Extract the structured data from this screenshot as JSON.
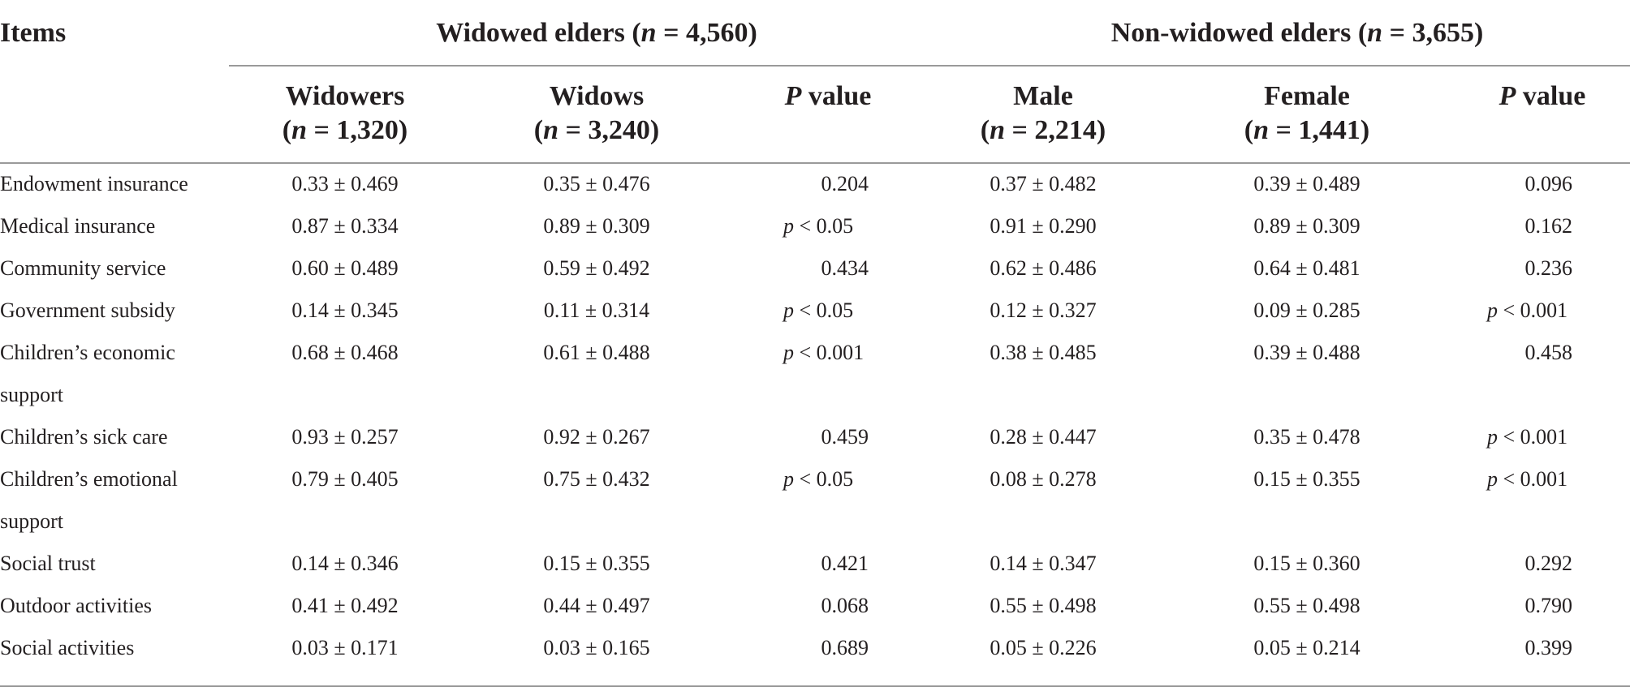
{
  "table": {
    "corner_header": "Items",
    "group_widowed": {
      "label": "Widowed elders (",
      "n_label": "n",
      "n_value": " = 4,560)"
    },
    "group_nonwidowed": {
      "label": "Non-widowed elders (",
      "n_label": "n",
      "n_value": " = 3,655)"
    },
    "columns": [
      {
        "line1": "Widowers",
        "line2_pre": "(",
        "n": "n",
        "line2_post": " = 1,320)"
      },
      {
        "line1": "Widows",
        "line2_pre": "(",
        "n": "n",
        "line2_post": " = 3,240)"
      },
      {
        "p_italic": "P",
        "p_rest": " value"
      },
      {
        "line1": "Male",
        "line2_pre": "(",
        "n": "n",
        "line2_post": " = 2,214)"
      },
      {
        "line1": "Female",
        "line2_pre": "(",
        "n": "n",
        "line2_post": " = 1,441)"
      },
      {
        "p_italic": "P",
        "p_rest": " value"
      }
    ],
    "rows": [
      {
        "item": [
          "Endowment insurance"
        ],
        "widowers": "0.33 ± 0.469",
        "widows": "0.35 ± 0.476",
        "p1": "0.204",
        "p1_italic": false,
        "male": "0.37 ± 0.482",
        "female": "0.39 ± 0.489",
        "p2": "0.096",
        "p2_italic": false
      },
      {
        "item": [
          "Medical insurance"
        ],
        "widowers": "0.87 ± 0.334",
        "widows": "0.89 ± 0.309",
        "p1": "< 0.05",
        "p1_italic": true,
        "male": "0.91 ± 0.290",
        "female": "0.89 ± 0.309",
        "p2": "0.162",
        "p2_italic": false
      },
      {
        "item": [
          "Community service"
        ],
        "widowers": "0.60 ± 0.489",
        "widows": "0.59 ± 0.492",
        "p1": "0.434",
        "p1_italic": false,
        "male": "0.62 ± 0.486",
        "female": "0.64 ± 0.481",
        "p2": "0.236",
        "p2_italic": false
      },
      {
        "item": [
          "Government subsidy"
        ],
        "widowers": "0.14 ± 0.345",
        "widows": "0.11 ± 0.314",
        "p1": "< 0.05",
        "p1_italic": true,
        "male": "0.12 ± 0.327",
        "female": "0.09 ± 0.285",
        "p2": "< 0.001",
        "p2_italic": true
      },
      {
        "item": [
          "Children’s economic",
          "support"
        ],
        "widowers": "0.68 ± 0.468",
        "widows": "0.61 ± 0.488",
        "p1": "< 0.001",
        "p1_italic": true,
        "male": "0.38 ± 0.485",
        "female": "0.39 ± 0.488",
        "p2": "0.458",
        "p2_italic": false
      },
      {
        "item": [
          "Children’s sick care"
        ],
        "widowers": "0.93 ± 0.257",
        "widows": "0.92 ± 0.267",
        "p1": "0.459",
        "p1_italic": false,
        "male": "0.28 ± 0.447",
        "female": "0.35 ± 0.478",
        "p2": "< 0.001",
        "p2_italic": true
      },
      {
        "item": [
          "Children’s emotional",
          "support"
        ],
        "widowers": "0.79 ± 0.405",
        "widows": "0.75 ± 0.432",
        "p1": "< 0.05",
        "p1_italic": true,
        "male": "0.08 ± 0.278",
        "female": "0.15 ± 0.355",
        "p2": "< 0.001",
        "p2_italic": true
      },
      {
        "item": [
          "Social trust"
        ],
        "widowers": "0.14 ± 0.346",
        "widows": "0.15 ± 0.355",
        "p1": "0.421",
        "p1_italic": false,
        "male": "0.14 ± 0.347",
        "female": "0.15 ± 0.360",
        "p2": "0.292",
        "p2_italic": false
      },
      {
        "item": [
          "Outdoor activities"
        ],
        "widowers": "0.41 ± 0.492",
        "widows": "0.44 ± 0.497",
        "p1": "0.068",
        "p1_italic": false,
        "male": "0.55 ± 0.498",
        "female": "0.55 ± 0.498",
        "p2": "0.790",
        "p2_italic": false
      },
      {
        "item": [
          "Social activities"
        ],
        "widowers": "0.03 ± 0.171",
        "widows": "0.03 ± 0.165",
        "p1": "0.689",
        "p1_italic": false,
        "male": "0.05 ± 0.226",
        "female": "0.05 ± 0.214",
        "p2": "0.399",
        "p2_italic": false
      }
    ],
    "p_prefix": "p"
  }
}
